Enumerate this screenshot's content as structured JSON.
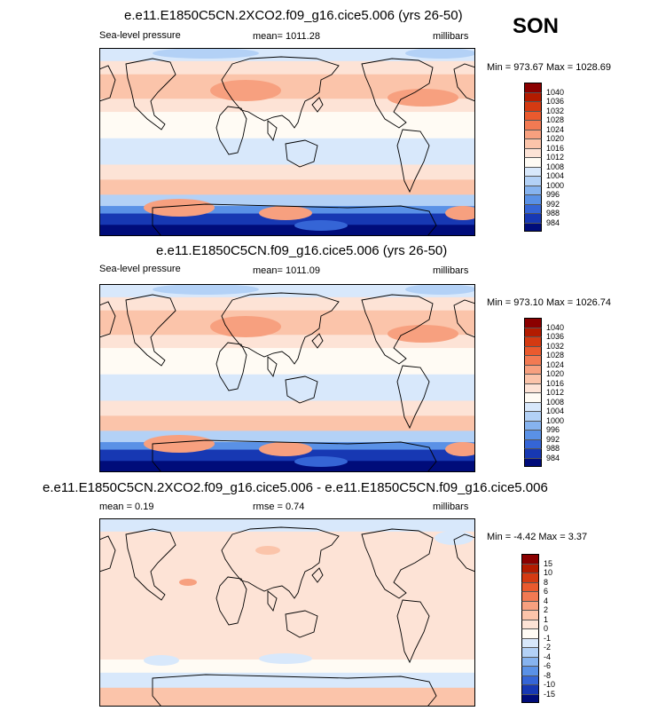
{
  "season": "SON",
  "panels": [
    {
      "id": "test",
      "title": "e.e11.E1850C5CN.2XCO2.f09_g16.cice5.006 (yrs 26-50)",
      "left_label": "Sea-level pressure",
      "center_label": "mean= 1011.28",
      "right_label": "millibars",
      "minmax": "Min = 973.67 Max = 1028.69",
      "colorbar": {
        "labels": [
          "1040",
          "1036",
          "1032",
          "1028",
          "1024",
          "1020",
          "1016",
          "1012",
          "1008",
          "1004",
          "1000",
          "996",
          "992",
          "988",
          "984"
        ],
        "colors": [
          "#8b0000",
          "#b31b00",
          "#d43a12",
          "#ea5a2e",
          "#f27a53",
          "#f7a07f",
          "#fbc4aa",
          "#fde3d6",
          "#fffbf4",
          "#d8e8fb",
          "#b3d1f6",
          "#86b3ef",
          "#5a91e6",
          "#3565d6",
          "#1738b3",
          "#000c7a"
        ]
      },
      "map_theme": "slp"
    },
    {
      "id": "control",
      "title": "e.e11.E1850C5CN.f09_g16.cice5.006 (yrs 26-50)",
      "left_label": "Sea-level pressure",
      "center_label": "mean= 1011.09",
      "right_label": "millibars",
      "minmax": "Min = 973.10 Max = 1026.74",
      "colorbar": {
        "labels": [
          "1040",
          "1036",
          "1032",
          "1028",
          "1024",
          "1020",
          "1016",
          "1012",
          "1008",
          "1004",
          "1000",
          "996",
          "992",
          "988",
          "984"
        ],
        "colors": [
          "#8b0000",
          "#b31b00",
          "#d43a12",
          "#ea5a2e",
          "#f27a53",
          "#f7a07f",
          "#fbc4aa",
          "#fde3d6",
          "#fffbf4",
          "#d8e8fb",
          "#b3d1f6",
          "#86b3ef",
          "#5a91e6",
          "#3565d6",
          "#1738b3",
          "#000c7a"
        ]
      },
      "map_theme": "slp"
    },
    {
      "id": "diff",
      "title": "e.e11.E1850C5CN.2XCO2.f09_g16.cice5.006 - e.e11.E1850C5CN.f09_g16.cice5.006",
      "left_label": "mean =  0.19",
      "center_label": "rmse =  0.74",
      "right_label": "millibars",
      "minmax": "Min =  -4.42 Max =  3.37",
      "colorbar": {
        "labels": [
          "15",
          "10",
          "8",
          "6",
          "4",
          "2",
          "1",
          "0",
          "-1",
          "-2",
          "-4",
          "-6",
          "-8",
          "-10",
          "-15"
        ],
        "colors": [
          "#8b0000",
          "#b31b00",
          "#d43a12",
          "#ea5a2e",
          "#f27a53",
          "#f7a07f",
          "#fbc4aa",
          "#fde3d6",
          "#fffbf4",
          "#d8e8fb",
          "#b3d1f6",
          "#86b3ef",
          "#5a91e6",
          "#3565d6",
          "#1738b3",
          "#000c7a"
        ]
      },
      "map_theme": "diff"
    }
  ]
}
